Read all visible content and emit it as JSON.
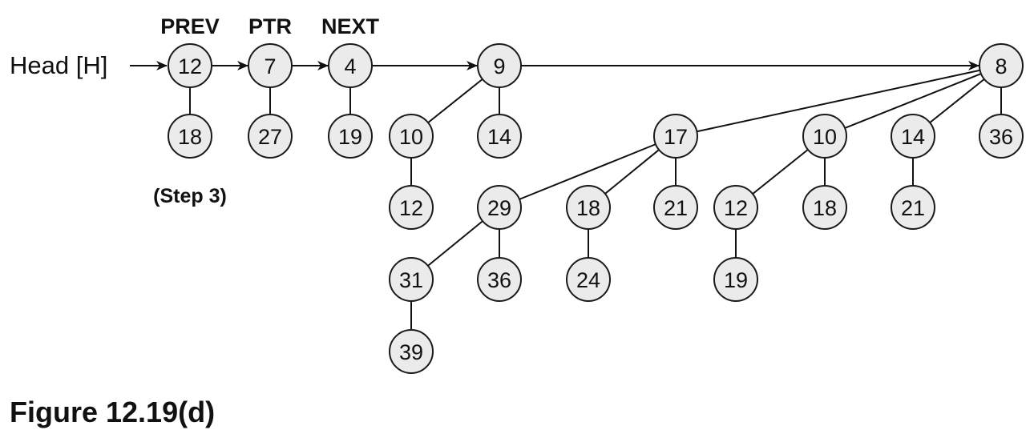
{
  "head_label": "Head [H]",
  "pointer_labels": {
    "prev": "PREV",
    "ptr": "PTR",
    "next": "NEXT"
  },
  "step_label": "(Step 3)",
  "caption": "Figure 12.19(d)",
  "nodes": [
    {
      "id": "r12",
      "label": "12"
    },
    {
      "id": "r7",
      "label": "7"
    },
    {
      "id": "r4",
      "label": "4"
    },
    {
      "id": "r9",
      "label": "9"
    },
    {
      "id": "r8",
      "label": "8"
    },
    {
      "id": "c18a",
      "label": "18"
    },
    {
      "id": "c27",
      "label": "27"
    },
    {
      "id": "c19a",
      "label": "19"
    },
    {
      "id": "c10a",
      "label": "10"
    },
    {
      "id": "c14a",
      "label": "14"
    },
    {
      "id": "c12a",
      "label": "12"
    },
    {
      "id": "c17",
      "label": "17"
    },
    {
      "id": "c10b",
      "label": "10"
    },
    {
      "id": "c14b",
      "label": "14"
    },
    {
      "id": "c36a",
      "label": "36"
    },
    {
      "id": "c29",
      "label": "29"
    },
    {
      "id": "c18b",
      "label": "18"
    },
    {
      "id": "c21a",
      "label": "21"
    },
    {
      "id": "c12b",
      "label": "12"
    },
    {
      "id": "c18c",
      "label": "18"
    },
    {
      "id": "c21b",
      "label": "21"
    },
    {
      "id": "c31",
      "label": "31"
    },
    {
      "id": "c36b",
      "label": "36"
    },
    {
      "id": "c24",
      "label": "24"
    },
    {
      "id": "c19b",
      "label": "19"
    },
    {
      "id": "c39",
      "label": "39"
    }
  ],
  "root_links": [
    [
      "r12",
      "r7"
    ],
    [
      "r7",
      "r4"
    ],
    [
      "r4",
      "r9"
    ],
    [
      "r9",
      "r8"
    ]
  ],
  "child_edges": [
    [
      "r12",
      "c18a"
    ],
    [
      "r7",
      "c27"
    ],
    [
      "r4",
      "c19a"
    ],
    [
      "r9",
      "c10a"
    ],
    [
      "r9",
      "c14a"
    ],
    [
      "c10a",
      "c12a"
    ],
    [
      "r8",
      "c17"
    ],
    [
      "r8",
      "c10b"
    ],
    [
      "r8",
      "c14b"
    ],
    [
      "r8",
      "c36a"
    ],
    [
      "c17",
      "c29"
    ],
    [
      "c17",
      "c18b"
    ],
    [
      "c17",
      "c21a"
    ],
    [
      "c10b",
      "c12b"
    ],
    [
      "c10b",
      "c18c"
    ],
    [
      "c14b",
      "c21b"
    ],
    [
      "c29",
      "c31"
    ],
    [
      "c29",
      "c36b"
    ],
    [
      "c18b",
      "c24"
    ],
    [
      "c12b",
      "c19b"
    ],
    [
      "c31",
      "c39"
    ]
  ]
}
